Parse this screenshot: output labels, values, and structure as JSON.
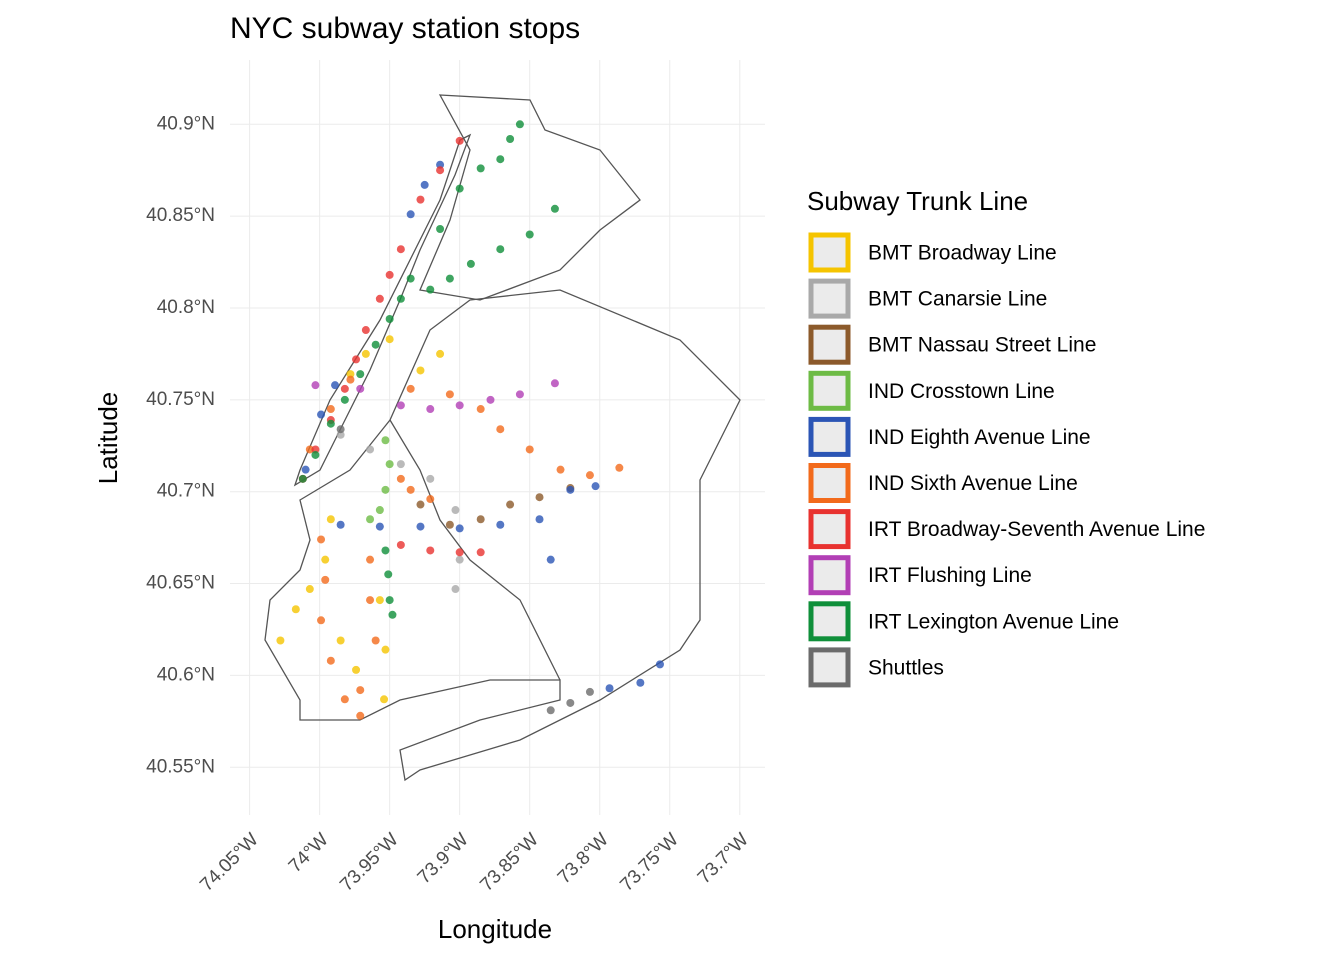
{
  "chart_data": {
    "type": "scatter",
    "title": "NYC subway station stops",
    "x_label": "Longitude",
    "y_label": "Latitude",
    "legend_title": "Subway Trunk Line",
    "legend_position": "right",
    "grid": true,
    "xlim": [
      -74.064,
      -73.682
    ],
    "ylim": [
      40.524,
      40.935
    ],
    "xticks": [
      {
        "value": -74.05,
        "label": "74.05°W"
      },
      {
        "value": -74.0,
        "label": "74°W"
      },
      {
        "value": -73.95,
        "label": "73.95°W"
      },
      {
        "value": -73.9,
        "label": "73.9°W"
      },
      {
        "value": -73.85,
        "label": "73.85°W"
      },
      {
        "value": -73.8,
        "label": "73.8°W"
      },
      {
        "value": -73.75,
        "label": "73.75°W"
      },
      {
        "value": -73.7,
        "label": "73.7°W"
      }
    ],
    "yticks": [
      {
        "value": 40.55,
        "label": "40.55°N"
      },
      {
        "value": 40.6,
        "label": "40.6°N"
      },
      {
        "value": 40.65,
        "label": "40.65°N"
      },
      {
        "value": 40.7,
        "label": "40.7°N"
      },
      {
        "value": 40.75,
        "label": "40.75°N"
      },
      {
        "value": 40.8,
        "label": "40.8°N"
      },
      {
        "value": 40.85,
        "label": "40.85°N"
      },
      {
        "value": 40.9,
        "label": "40.9°N"
      }
    ],
    "series": [
      {
        "name": "BMT Broadway Line",
        "color": "#f5c400",
        "x": [
          -73.978,
          -73.967,
          -73.95,
          -73.928,
          -73.914,
          -73.992,
          -73.996,
          -74.007,
          -74.017,
          -74.028,
          -73.985,
          -73.974,
          -73.957,
          -73.953,
          -73.954
        ],
        "values": [
          40.764,
          40.775,
          40.783,
          40.766,
          40.775,
          40.685,
          40.663,
          40.647,
          40.636,
          40.619,
          40.619,
          40.603,
          40.641,
          40.614,
          40.587
        ]
      },
      {
        "name": "BMT Canarsie Line",
        "color": "#a9a9a9",
        "x": [
          -73.985,
          -73.964,
          -73.942,
          -73.921,
          -73.903,
          -73.9,
          -73.903
        ],
        "values": [
          40.731,
          40.723,
          40.715,
          40.707,
          40.69,
          40.663,
          40.647
        ]
      },
      {
        "name": "BMT Nassau Street Line",
        "color": "#8c5a2b",
        "x": [
          -73.928,
          -73.907,
          -73.885,
          -73.864,
          -73.843,
          -73.821
        ],
        "values": [
          40.693,
          40.682,
          40.685,
          40.693,
          40.697,
          40.702
        ]
      },
      {
        "name": "IND Crosstown Line",
        "color": "#6dbb45",
        "x": [
          -73.953,
          -73.95,
          -73.953,
          -73.957,
          -73.964
        ],
        "values": [
          40.728,
          40.715,
          40.701,
          40.69,
          40.685
        ]
      },
      {
        "name": "IND Eighth Avenue Line",
        "color": "#2b55b5",
        "x": [
          -74.01,
          -73.999,
          -73.989,
          -73.935,
          -73.925,
          -73.914,
          -73.985,
          -73.957,
          -73.928,
          -73.9,
          -73.871,
          -73.843,
          -73.821,
          -73.803,
          -73.835,
          -73.793,
          -73.771,
          -73.757
        ],
        "values": [
          40.712,
          40.742,
          40.758,
          40.851,
          40.867,
          40.878,
          40.682,
          40.681,
          40.681,
          40.68,
          40.682,
          40.685,
          40.701,
          40.703,
          40.663,
          40.593,
          40.596,
          40.606
        ]
      },
      {
        "name": "IND Sixth Avenue Line",
        "color": "#f26a1b",
        "x": [
          -74.007,
          -73.992,
          -73.978,
          -73.935,
          -73.907,
          -73.885,
          -73.871,
          -73.85,
          -73.828,
          -73.807,
          -73.786,
          -73.999,
          -73.996,
          -73.999,
          -73.992,
          -73.982,
          -73.971,
          -73.964,
          -73.964,
          -73.96,
          -73.971,
          -73.942,
          -73.935,
          -73.921
        ],
        "values": [
          40.723,
          40.745,
          40.761,
          40.756,
          40.753,
          40.745,
          40.734,
          40.723,
          40.712,
          40.709,
          40.713,
          40.674,
          40.652,
          40.63,
          40.608,
          40.587,
          40.578,
          40.663,
          40.641,
          40.619,
          40.592,
          40.707,
          40.701,
          40.696
        ]
      },
      {
        "name": "IRT Broadway-Seventh Avenue Line",
        "color": "#e8322f",
        "x": [
          -74.012,
          -74.003,
          -73.992,
          -73.982,
          -73.974,
          -73.967,
          -73.957,
          -73.95,
          -73.942,
          -73.928,
          -73.914,
          -73.9,
          -73.942,
          -73.921,
          -73.9,
          -73.885
        ],
        "values": [
          40.707,
          40.723,
          40.739,
          40.756,
          40.772,
          40.788,
          40.805,
          40.818,
          40.832,
          40.859,
          40.875,
          40.891,
          40.671,
          40.668,
          40.667,
          40.667
        ]
      },
      {
        "name": "IRT Flushing Line",
        "color": "#b23fb5",
        "x": [
          -74.003,
          -73.971,
          -73.942,
          -73.921,
          -73.9,
          -73.878,
          -73.857,
          -73.832
        ],
        "values": [
          40.758,
          40.756,
          40.747,
          40.745,
          40.747,
          40.75,
          40.753,
          40.759
        ]
      },
      {
        "name": "IRT Lexington Avenue Line",
        "color": "#0f8f3a",
        "x": [
          -74.012,
          -74.003,
          -73.992,
          -73.982,
          -73.971,
          -73.96,
          -73.95,
          -73.942,
          -73.935,
          -73.921,
          -73.907,
          -73.892,
          -73.871,
          -73.85,
          -73.832,
          -73.914,
          -73.9,
          -73.885,
          -73.871,
          -73.864,
          -73.857,
          -73.953,
          -73.951,
          -73.95,
          -73.948
        ],
        "values": [
          40.707,
          40.72,
          40.737,
          40.75,
          40.764,
          40.78,
          40.794,
          40.805,
          40.816,
          40.81,
          40.816,
          40.824,
          40.832,
          40.84,
          40.854,
          40.843,
          40.865,
          40.876,
          40.881,
          40.892,
          40.9,
          40.668,
          40.655,
          40.641,
          40.633
        ]
      },
      {
        "name": "Shuttles",
        "color": "#6b6b6b",
        "x": [
          -73.985,
          -73.835,
          -73.821,
          -73.807
        ],
        "values": [
          40.734,
          40.581,
          40.585,
          40.591
        ]
      }
    ]
  }
}
